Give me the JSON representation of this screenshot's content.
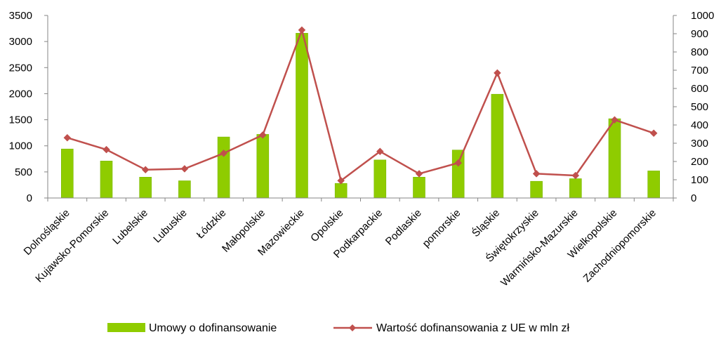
{
  "chart_data": {
    "type": "bar",
    "categories": [
      "Dolnośląskie",
      "Kujawsko-Pomorskie",
      "Lubelskie",
      "Lubuskie",
      "Łódzkie",
      "Małopolskie",
      "Mazowieckie",
      "Opolskie",
      "Podkarpackie",
      "Podlaskie",
      "pomorskie",
      "Śląskie",
      "Świętokrzyskie",
      "Warmińsko-Mazurskie",
      "Wielkopolskie",
      "Zachodniopomorskie"
    ],
    "series": [
      {
        "name": "Umowy o dofinansowanie",
        "type": "bar",
        "axis": "left",
        "color": "#8fcc00",
        "values": [
          940,
          710,
          400,
          330,
          1170,
          1220,
          3160,
          280,
          730,
          400,
          920,
          1990,
          320,
          370,
          1520,
          520
        ]
      },
      {
        "name": "Wartość dofinansowania z UE w mln zł",
        "type": "line",
        "axis": "right",
        "color": "#c0504d",
        "values": [
          330,
          265,
          155,
          160,
          245,
          345,
          920,
          95,
          255,
          133,
          192,
          685,
          133,
          123,
          428,
          355
        ]
      }
    ],
    "y_left": {
      "min": 0,
      "max": 3500,
      "ticks": [
        "0",
        "500",
        "1000",
        "1500",
        "2000",
        "2500",
        "3000",
        "3500"
      ]
    },
    "y_right": {
      "min": 0,
      "max": 1000,
      "ticks": [
        "0",
        "100",
        "200",
        "300",
        "400",
        "500",
        "600",
        "700",
        "800",
        "900",
        "1000"
      ]
    },
    "legend_position": "bottom",
    "grid": false
  }
}
